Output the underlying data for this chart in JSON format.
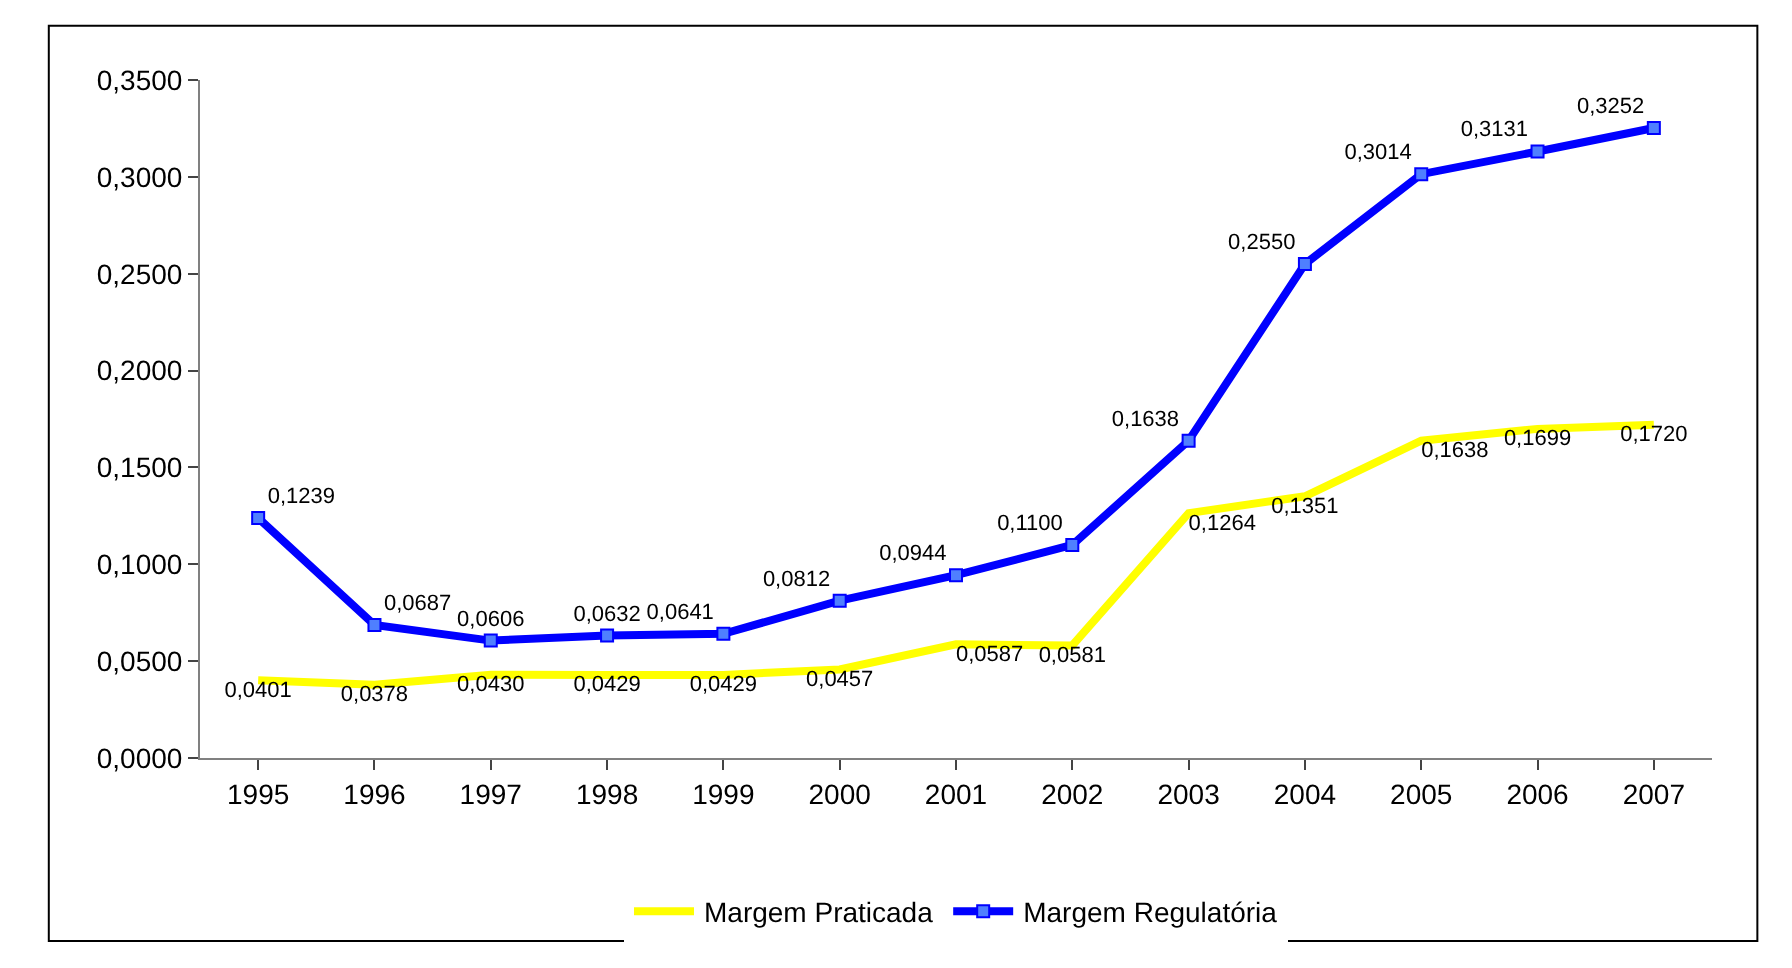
{
  "chart_data": {
    "type": "line",
    "categories": [
      "1995",
      "1996",
      "1997",
      "1998",
      "1999",
      "2000",
      "2001",
      "2002",
      "2003",
      "2004",
      "2005",
      "2006",
      "2007"
    ],
    "series": [
      {
        "name": "Margem Praticada",
        "color": "#ffff00",
        "marker": "none",
        "values": [
          0.0401,
          0.0378,
          0.043,
          0.0429,
          0.0429,
          0.0457,
          0.0587,
          0.0581,
          0.1264,
          0.1351,
          0.1638,
          0.1699,
          0.172
        ],
        "value_labels": [
          "0,0401",
          "0,0378",
          "0,0430",
          "0,0429",
          "0,0429",
          "0,0457",
          "0,0587",
          "0,0581",
          "0,1264",
          "0,1351",
          "0,1638",
          "0,1699",
          "0,1720"
        ]
      },
      {
        "name": "Margem Regulatória",
        "color": "#0000ff",
        "marker": "square",
        "values": [
          0.1239,
          0.0687,
          0.0606,
          0.0632,
          0.0641,
          0.0812,
          0.0944,
          0.11,
          0.1638,
          0.255,
          0.3014,
          0.3131,
          0.3252
        ],
        "value_labels": [
          "0,1239",
          "0,0687",
          "0,0606",
          "0,0632",
          "0,0641",
          "0,0812",
          "0,0944",
          "0,1100",
          "0,1638",
          "0,2550",
          "0,3014",
          "0,3131",
          "0,3252"
        ]
      }
    ],
    "ylim": [
      0,
      0.35
    ],
    "yticks": [
      {
        "value": 0,
        "label": "0,0000"
      },
      {
        "value": 0.05,
        "label": "0,0500"
      },
      {
        "value": 0.1,
        "label": "0,1000"
      },
      {
        "value": 0.15,
        "label": "0,1500"
      },
      {
        "value": 0.2,
        "label": "0,2000"
      },
      {
        "value": 0.25,
        "label": "0,2500"
      },
      {
        "value": 0.3,
        "label": "0,3000"
      },
      {
        "value": 0.35,
        "label": "0,3500"
      }
    ],
    "legend": "bottom",
    "line_style": "solid"
  }
}
